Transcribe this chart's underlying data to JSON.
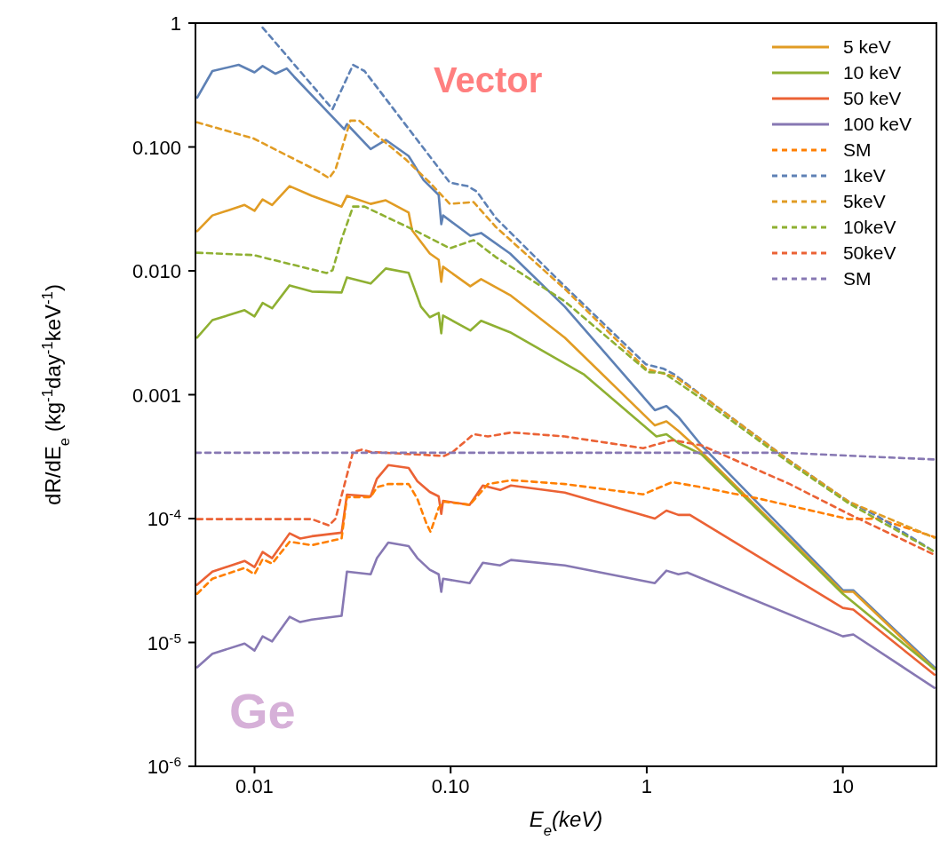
{
  "chart_data": {
    "type": "line",
    "xlabel": "E$_{e}$(keV)",
    "ylabel": "dR/dE$_{e}$ (kg$^{-1}$day$^{-1}$keV$^{-1}$)",
    "log": "xy",
    "xlim": [
      0.005,
      30
    ],
    "ylim": [
      1e-06,
      1
    ],
    "xticks": [
      0.01,
      {
        "value": 0.1,
        "label": "0.10"
      },
      1,
      10
    ],
    "yticks": [
      {
        "value": 1e-06,
        "label": "10$^{-6}$"
      },
      {
        "value": 1e-05,
        "label": "10$^{-5}$"
      },
      {
        "value": 0.0001,
        "label": "10$^{-4}$"
      },
      0.001,
      {
        "value": 0.01,
        "label": "0.010"
      },
      {
        "value": 0.1,
        "label": "0.100"
      },
      1
    ],
    "legend": "top right",
    "marker": "none",
    "annotations": [
      "Vector",
      "Ge"
    ],
    "series": [
      {
        "color": "#5e81b5",
        "line_style": "solid",
        "x": [
          0.0051,
          0.0061,
          0.0083,
          0.01,
          0.011,
          0.0128,
          0.0146,
          0.0159,
          0.0287,
          0.0296,
          0.0391,
          0.0467,
          0.0611,
          0.0728,
          0.0869,
          0.0896,
          0.0915,
          0.126,
          0.143,
          0.201,
          0.382,
          1.1,
          1.26,
          1.45,
          1.9,
          10,
          11.3,
          29.3
        ],
        "values": [
          0.25,
          0.41,
          0.46,
          0.4,
          0.45,
          0.39,
          0.43,
          0.37,
          0.139,
          0.153,
          0.096,
          0.114,
          0.0845,
          0.054,
          0.041,
          0.0238,
          0.028,
          0.0192,
          0.0202,
          0.0138,
          0.00514,
          0.00075,
          0.00081,
          0.00066,
          0.00039,
          2.64e-05,
          2.64e-05,
          6.3e-06
        ]
      },
      {
        "name": "5 keV",
        "color": "#e19c24",
        "line_style": "solid",
        "x": [
          0.0051,
          0.0061,
          0.0089,
          0.01,
          0.011,
          0.0123,
          0.0151,
          0.0196,
          0.0278,
          0.0296,
          0.0391,
          0.0467,
          0.0611,
          0.0637,
          0.0783,
          0.0869,
          0.0896,
          0.0915,
          0.126,
          0.143,
          0.201,
          0.382,
          1.1,
          1.26,
          1.45,
          1.9,
          10,
          11.3,
          29.3
        ],
        "values": [
          0.0209,
          0.028,
          0.034,
          0.0305,
          0.0377,
          0.034,
          0.0483,
          0.0403,
          0.033,
          0.0403,
          0.0347,
          0.0371,
          0.0295,
          0.0212,
          0.0138,
          0.0123,
          0.00815,
          0.0108,
          0.0075,
          0.00857,
          0.00637,
          0.00289,
          0.000565,
          0.00061,
          0.00051,
          0.000345,
          2.56e-05,
          2.56e-05,
          6.1e-06
        ]
      },
      {
        "name": "10 keV",
        "color": "#8fb032",
        "line_style": "solid",
        "x": [
          0.0051,
          0.0061,
          0.0089,
          0.01,
          0.011,
          0.0123,
          0.0151,
          0.0196,
          0.0278,
          0.0296,
          0.0391,
          0.0467,
          0.0611,
          0.0706,
          0.0783,
          0.0869,
          0.0896,
          0.0915,
          0.126,
          0.143,
          0.201,
          0.48,
          1.12,
          1.26,
          1.45,
          1.9,
          10,
          29.3
        ],
        "values": [
          0.00289,
          0.004,
          0.00481,
          0.00429,
          0.0055,
          0.00498,
          0.00763,
          0.0068,
          0.00669,
          0.00885,
          0.00789,
          0.01044,
          0.00962,
          0.00514,
          0.00422,
          0.00458,
          0.00313,
          0.00436,
          0.0033,
          0.00395,
          0.00319,
          0.00145,
          0.00046,
          0.00048,
          0.000407,
          0.00033,
          2.47e-05,
          6.1e-06
        ]
      },
      {
        "name": "50 keV",
        "color": "#eb6235",
        "line_style": "solid",
        "x": [
          0.0051,
          0.0061,
          0.0089,
          0.01,
          0.011,
          0.0123,
          0.0151,
          0.0171,
          0.0196,
          0.0278,
          0.0296,
          0.0391,
          0.0421,
          0.0481,
          0.0611,
          0.0677,
          0.0783,
          0.0869,
          0.0896,
          0.0915,
          0.125,
          0.146,
          0.179,
          0.203,
          0.382,
          1.1,
          1.26,
          1.45,
          1.66,
          10,
          11.3,
          29.3
        ],
        "values": [
          2.92e-05,
          3.73e-05,
          4.55e-05,
          4.06e-05,
          5.37e-05,
          4.79e-05,
          7.6e-05,
          6.9e-05,
          7.2e-05,
          7.7e-05,
          0.000156,
          0.000151,
          0.00021,
          0.00027,
          0.000256,
          0.0002,
          0.000164,
          0.000151,
          0.000109,
          0.000139,
          0.000129,
          0.000185,
          0.00017,
          0.000185,
          0.000162,
          0.0001,
          0.000116,
          0.000107,
          0.000107,
          1.9e-05,
          1.84e-05,
          5.5e-06
        ]
      },
      {
        "name": "100 keV",
        "color": "#8778b3",
        "line_style": "solid",
        "x": [
          0.0051,
          0.0061,
          0.0089,
          0.01,
          0.011,
          0.0123,
          0.0151,
          0.0171,
          0.0196,
          0.0278,
          0.0296,
          0.0391,
          0.0421,
          0.0481,
          0.0611,
          0.0677,
          0.0783,
          0.0869,
          0.0896,
          0.0915,
          0.125,
          0.146,
          0.179,
          0.203,
          0.382,
          1.1,
          1.26,
          1.45,
          1.61,
          10,
          11.3,
          29.3
        ],
        "values": [
          6.3e-06,
          8.1e-06,
          9.8e-06,
          8.6e-06,
          1.12e-05,
          1.02e-05,
          1.61e-05,
          1.46e-05,
          1.53e-05,
          1.64e-05,
          3.73e-05,
          3.55e-05,
          4.79e-05,
          6.4e-05,
          6e-05,
          4.79e-05,
          3.86e-05,
          3.55e-05,
          2.56e-05,
          3.27e-05,
          3.01e-05,
          4.4e-05,
          4.19e-05,
          4.63e-05,
          4.19e-05,
          3.01e-05,
          3.8e-05,
          3.55e-05,
          3.67e-05,
          1.12e-05,
          1.16e-05,
          4.3e-06
        ]
      },
      {
        "name": "SM",
        "color": "#ff7f00",
        "line_style": "dashed",
        "x": [
          0.0051,
          0.0061,
          0.0089,
          0.01,
          0.011,
          0.0123,
          0.0151,
          0.0196,
          0.0278,
          0.0296,
          0.0391,
          0.0421,
          0.0481,
          0.0611,
          0.0677,
          0.0751,
          0.079,
          0.0869,
          0.0925,
          0.125,
          0.155,
          0.205,
          0.382,
          0.96,
          1.35,
          1.9,
          3.8,
          10.7,
          15.1,
          29.3
        ],
        "values": [
          2.47e-05,
          3.27e-05,
          3.99e-05,
          3.55e-05,
          4.7e-05,
          4.33e-05,
          6.5e-05,
          6.1e-05,
          6.9e-05,
          0.000149,
          0.000149,
          0.000179,
          0.00019,
          0.00019,
          0.000144,
          9.2e-05,
          7.8e-05,
          0.000122,
          0.000137,
          0.000129,
          0.00019,
          0.000204,
          0.00019,
          0.000157,
          0.000197,
          0.000179,
          0.000144,
          9.9e-05,
          0.0001,
          7.1e-05
        ]
      },
      {
        "name": "1keV",
        "color": "#5e81b5",
        "line_style": "dashed",
        "x": [
          0.011,
          0.025,
          0.0318,
          0.0364,
          0.099,
          0.122,
          0.136,
          0.17,
          0.382,
          0.99,
          1.22,
          1.39,
          1.9,
          5.36,
          10.7,
          15.1,
          29.3
        ],
        "values": [
          0.92,
          0.202,
          0.46,
          0.41,
          0.0516,
          0.0483,
          0.0437,
          0.0267,
          0.0075,
          0.00176,
          0.00162,
          0.00145,
          0.00099,
          0.000292,
          0.000137,
          0.000104,
          5.4e-05
        ]
      },
      {
        "name": "5keV",
        "color": "#e19c24",
        "line_style": "dashed",
        "x": [
          0.0051,
          0.0099,
          0.021,
          0.024,
          0.0259,
          0.0308,
          0.0342,
          0.0592,
          0.0783,
          0.099,
          0.131,
          0.17,
          0.382,
          0.99,
          1.39,
          1.9,
          5.36,
          10.7,
          29.3
        ],
        "values": [
          0.158,
          0.117,
          0.064,
          0.056,
          0.066,
          0.163,
          0.163,
          0.079,
          0.0516,
          0.0347,
          0.0359,
          0.0226,
          0.00714,
          0.00162,
          0.0014,
          0.00099,
          0.000292,
          0.000137,
          7e-05
        ]
      },
      {
        "name": "10keV",
        "color": "#8fb032",
        "line_style": "dashed",
        "x": [
          0.0051,
          0.0099,
          0.0233,
          0.025,
          0.0278,
          0.0318,
          0.0364,
          0.0656,
          0.099,
          0.131,
          0.17,
          0.382,
          1.02,
          1.22,
          1.9,
          5.36,
          10.7,
          29.3
        ],
        "values": [
          0.014,
          0.0134,
          0.0096,
          0.0101,
          0.018,
          0.033,
          0.033,
          0.0212,
          0.0152,
          0.0177,
          0.0129,
          0.00567,
          0.00152,
          0.0015,
          0.00093,
          0.00028,
          0.000133,
          5.4e-05
        ]
      },
      {
        "name": "50keV",
        "color": "#eb6235",
        "line_style": "dashed",
        "x": [
          0.0051,
          0.0196,
          0.024,
          0.0259,
          0.0318,
          0.0352,
          0.0391,
          0.0925,
          0.1026,
          0.131,
          0.155,
          0.205,
          0.382,
          0.96,
          1.35,
          1.9,
          5.36,
          10.7,
          29.3
        ],
        "values": [
          9.9e-05,
          9.9e-05,
          8.8e-05,
          0.0001,
          0.000345,
          0.00036,
          0.000345,
          0.00032,
          0.000345,
          0.00048,
          0.00046,
          0.000496,
          0.00046,
          0.00037,
          0.00043,
          0.00039,
          0.00019,
          0.000109,
          5.1e-05
        ]
      },
      {
        "name": "SM",
        "color": "#8778b3",
        "line_style": "dashed",
        "x": [
          0.005,
          5,
          29.3
        ],
        "values": [
          0.00034,
          0.00034,
          0.0003
        ]
      }
    ]
  }
}
